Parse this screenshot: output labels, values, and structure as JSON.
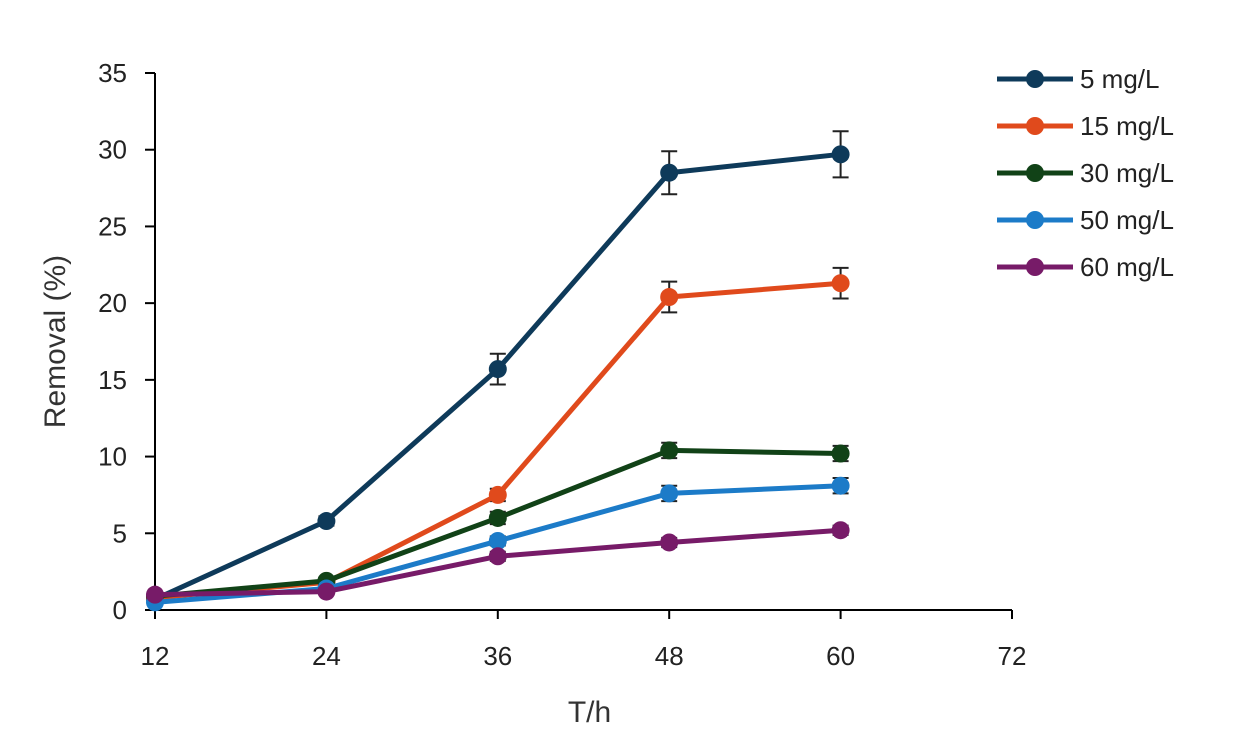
{
  "chart_data": {
    "type": "line",
    "title": "",
    "xlabel": "T/h",
    "ylabel": "Removal (%)",
    "xlim": [
      12,
      72
    ],
    "ylim": [
      0,
      35
    ],
    "xticks": [
      12,
      24,
      36,
      48,
      60,
      72
    ],
    "yticks": [
      0,
      5,
      10,
      15,
      20,
      25,
      30,
      35
    ],
    "grid": false,
    "legend": "top-right",
    "x": [
      12,
      24,
      36,
      48,
      60
    ],
    "series": [
      {
        "name": "5 mg/L",
        "color": "#0e3a5a",
        "values": [
          0.7,
          5.8,
          15.7,
          28.5,
          29.7
        ],
        "errors": [
          0.2,
          0.3,
          1.0,
          1.4,
          1.5
        ]
      },
      {
        "name": "15 mg/L",
        "color": "#e04a1c",
        "values": [
          0.8,
          1.8,
          7.5,
          20.4,
          21.3
        ],
        "errors": [
          0.2,
          0.2,
          0.4,
          1.0,
          1.0
        ]
      },
      {
        "name": "30 mg/L",
        "color": "#114217",
        "values": [
          0.9,
          1.9,
          6.0,
          10.4,
          10.2
        ],
        "errors": [
          0.2,
          0.2,
          0.4,
          0.5,
          0.5
        ]
      },
      {
        "name": "50 mg/L",
        "color": "#1c7bc8",
        "values": [
          0.5,
          1.4,
          4.5,
          7.6,
          8.1
        ],
        "errors": [
          0.1,
          0.2,
          0.3,
          0.5,
          0.5
        ]
      },
      {
        "name": "60 mg/L",
        "color": "#771b68",
        "values": [
          1.0,
          1.2,
          3.5,
          4.4,
          5.2
        ],
        "errors": [
          0.2,
          0.2,
          0.3,
          0.3,
          0.3
        ]
      }
    ]
  }
}
